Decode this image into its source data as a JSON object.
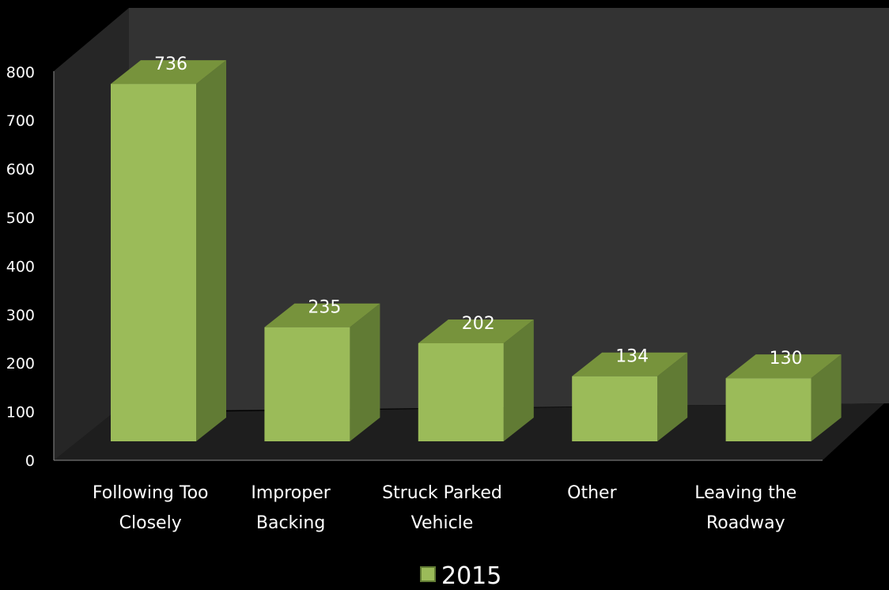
{
  "chart_data": {
    "type": "bar",
    "categories": [
      [
        "Following Too",
        "Closely"
      ],
      [
        "Improper",
        "Backing"
      ],
      [
        "Struck Parked",
        "Vehicle"
      ],
      [
        "Other"
      ],
      [
        "Leaving the",
        "Roadway"
      ]
    ],
    "series": [
      {
        "name": "2015",
        "values": [
          736,
          235,
          202,
          134,
          130
        ]
      }
    ],
    "ylim": [
      0,
      800
    ],
    "yticks": [
      0,
      100,
      200,
      300,
      400,
      500,
      600,
      700,
      800
    ],
    "legend": "bottom-center",
    "grid": false,
    "colors": {
      "bar_front": "#9bbb59",
      "bar_top": "#77933c",
      "bar_side": "#617b34",
      "back_wall": "#333333",
      "side_wall": "#262626",
      "floor": "#1e1e1e"
    }
  }
}
